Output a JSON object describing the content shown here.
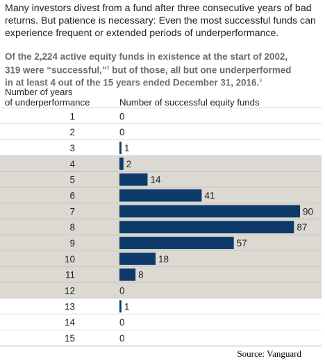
{
  "intro": "Many investors divest from a fund after three consecutive years of bad returns. But patience is necessary: Even the most successful funds can experience frequent or extended periods of underperformance.",
  "subtitle": {
    "line1": "Of the 2,224 active equity funds in existence at the start of 2002,",
    "line2_pre": "319 were “successful,”",
    "line2_sup": "2",
    "line2_post": " but of those, all but one underperformed",
    "line3_pre": "in at least 4 out of the 15 years ended December 31, 2016.",
    "line3_sup": "3"
  },
  "column_headers": {
    "left_line1": "Number of years",
    "left_line2": "of underperformance",
    "right": "Number of successful equity funds"
  },
  "source": "Source: Vanguard",
  "colors": {
    "bar": "#0d3a6b",
    "row_light": "#ffffff",
    "row_shaded": "#dcd9d2",
    "separator": "#9a9a9a"
  },
  "chart_data": {
    "type": "bar",
    "orientation": "horizontal",
    "categories": [
      "1",
      "2",
      "3",
      "4",
      "5",
      "6",
      "7",
      "8",
      "9",
      "10",
      "11",
      "12",
      "13",
      "14",
      "15"
    ],
    "values": [
      0,
      0,
      1,
      2,
      14,
      41,
      90,
      87,
      57,
      18,
      8,
      0,
      1,
      0,
      0
    ],
    "xlabel": "Number of successful equity funds",
    "ylabel": "Number of years of underperformance",
    "grid": false,
    "legend": "none"
  }
}
